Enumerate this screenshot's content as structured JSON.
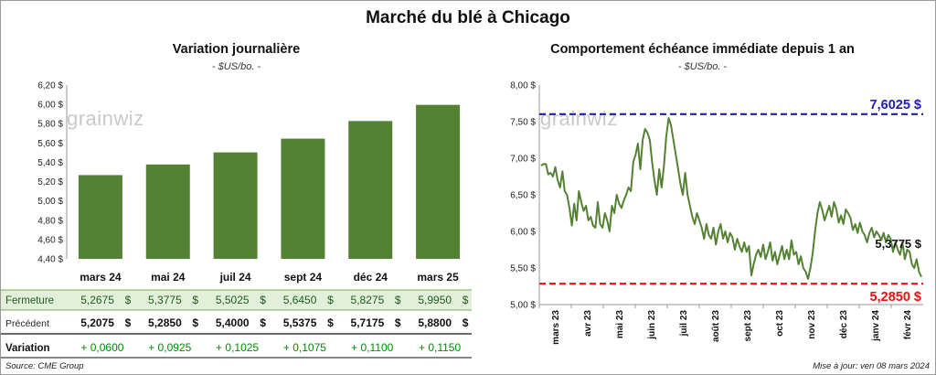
{
  "title": "Marché du blé à Chicago",
  "source": "Source: CME Group",
  "updated": "Mise à jour: ven 08 mars 2024",
  "logo_text": "grainwiz",
  "left_chart": {
    "title": "Variation  journalière",
    "unit": "- $US/bo. -",
    "row_labels": {
      "close": "Fermeture",
      "previous": "Précédent",
      "change": "Variation"
    },
    "currency": "$",
    "close_texts": [
      "5,2675",
      "5,3775",
      "5,5025",
      "5,6450",
      "5,8275",
      "5,9950"
    ],
    "previous_texts": [
      "5,2075",
      "5,2850",
      "5,4000",
      "5,5375",
      "5,7175",
      "5,8800"
    ],
    "change_texts": [
      "+ 0,0600",
      "+ 0,0925",
      "+ 0,1025",
      "+ 0,1075",
      "+ 0,1100",
      "+ 0,1150"
    ],
    "colors": {
      "bar": "#548235",
      "close_row": "#e2efda",
      "positive": "#008a00"
    }
  },
  "right_chart": {
    "title": "Comportement  échéance immédiate depuis 1 an",
    "unit": "- $US/bo. -",
    "high_label": "7,6025 $",
    "low_label": "5,2850 $",
    "last_label": "5,3775 $",
    "colors": {
      "line": "#548235",
      "high": "#1f1fa8",
      "low": "#e81010"
    }
  },
  "chart_data": [
    {
      "type": "bar",
      "title": "Variation journalière",
      "ylabel": "$US/bo.",
      "categories": [
        "mars 24",
        "mai 24",
        "juil 24",
        "sept 24",
        "déc 24",
        "mars 25"
      ],
      "values": [
        5.2675,
        5.3775,
        5.5025,
        5.645,
        5.8275,
        5.995
      ],
      "previous": [
        5.2075,
        5.285,
        5.4,
        5.5375,
        5.7175,
        5.88
      ],
      "change": [
        0.06,
        0.0925,
        0.1025,
        0.1075,
        0.11,
        0.115
      ],
      "ylim": [
        4.4,
        6.2
      ],
      "yticks": [
        "6,20 $",
        "6,00 $",
        "5,80 $",
        "5,60 $",
        "5,40 $",
        "5,20 $",
        "5,00 $",
        "4,80 $",
        "4,60 $",
        "4,40 $"
      ]
    },
    {
      "type": "line",
      "title": "Comportement échéance immédiate depuis 1 an",
      "ylabel": "$US/bo.",
      "ylim": [
        5.0,
        8.0
      ],
      "yticks": [
        "8,00 $",
        "7,50 $",
        "7,00 $",
        "6,50 $",
        "6,00 $",
        "5,50 $",
        "5,00 $"
      ],
      "xticks": [
        "mars 23",
        "avr 23",
        "mai 23",
        "juin 23",
        "juil 23",
        "août 23",
        "sept 23",
        "oct 23",
        "nov 23",
        "déc 23",
        "janv 24",
        "févr 24"
      ],
      "high": 7.6025,
      "low": 5.285,
      "last": 5.3775,
      "values": [
        6.9,
        6.92,
        6.92,
        6.78,
        6.8,
        6.75,
        6.88,
        6.7,
        6.6,
        6.82,
        6.55,
        6.5,
        6.32,
        6.08,
        6.38,
        6.15,
        6.55,
        6.4,
        6.28,
        6.35,
        6.15,
        6.2,
        6.08,
        6.05,
        6.4,
        6.1,
        6.05,
        6.25,
        6.15,
        6.0,
        6.35,
        6.25,
        6.5,
        6.38,
        6.32,
        6.42,
        6.5,
        6.6,
        6.55,
        6.95,
        7.05,
        7.2,
        6.85,
        7.25,
        7.4,
        7.35,
        7.25,
        6.95,
        6.7,
        6.5,
        6.85,
        6.6,
        6.9,
        7.3,
        7.55,
        7.45,
        7.25,
        7.05,
        6.85,
        6.65,
        6.5,
        6.8,
        6.5,
        6.35,
        6.2,
        6.1,
        6.25,
        6.15,
        6.05,
        5.9,
        6.1,
        5.95,
        5.9,
        6.05,
        5.82,
        6.0,
        6.1,
        5.9,
        6.0,
        5.85,
        5.98,
        5.92,
        5.75,
        5.9,
        5.8,
        5.72,
        5.85,
        5.72,
        5.8,
        5.4,
        5.55,
        5.68,
        5.75,
        5.65,
        5.82,
        5.62,
        5.72,
        5.85,
        5.6,
        5.72,
        5.55,
        5.68,
        5.8,
        5.62,
        5.75,
        5.62,
        5.88,
        5.68,
        5.72,
        5.55,
        5.66,
        5.5,
        5.45,
        5.35,
        5.5,
        5.7,
        6.0,
        6.25,
        6.4,
        6.3,
        6.15,
        6.25,
        6.35,
        6.2,
        6.4,
        6.3,
        6.12,
        6.22,
        6.1,
        6.3,
        6.25,
        6.18,
        6.02,
        6.1,
        5.98,
        6.12,
        6.0,
        5.95,
        5.85,
        5.98,
        6.05,
        5.92,
        6.0,
        5.95,
        5.88,
        5.98,
        5.85,
        5.95,
        5.9,
        5.72,
        5.85,
        5.75,
        5.68,
        5.85,
        5.62,
        5.75,
        5.72,
        5.55,
        5.5,
        5.62,
        5.45,
        5.3775
      ]
    }
  ]
}
